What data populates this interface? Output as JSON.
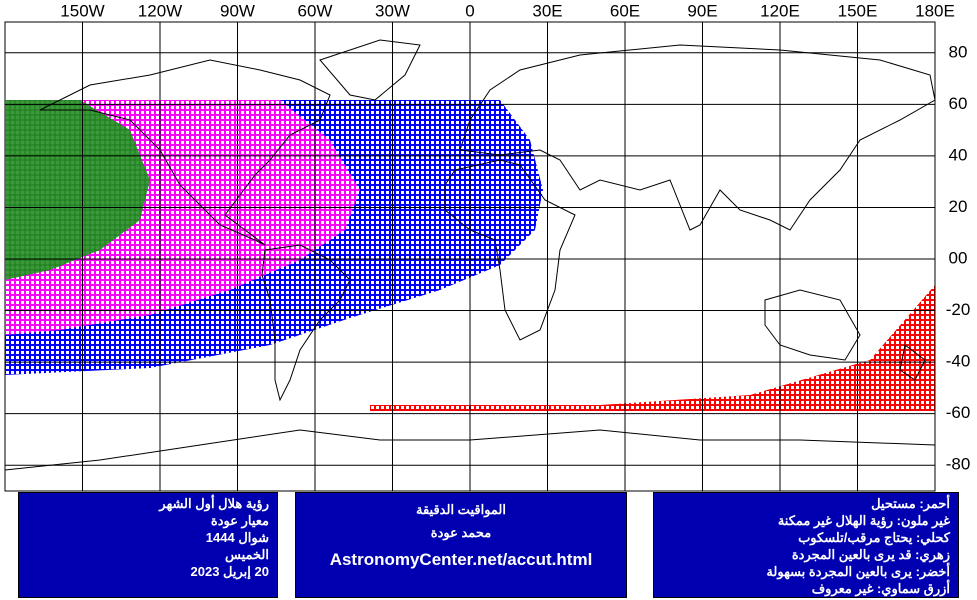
{
  "map": {
    "xticks": [
      {
        "value": -150,
        "label": "150W"
      },
      {
        "value": -120,
        "label": "120W"
      },
      {
        "value": -90,
        "label": "90W"
      },
      {
        "value": -60,
        "label": "60W"
      },
      {
        "value": -30,
        "label": "30W"
      },
      0,
      {
        "value": 30,
        "label": "30E"
      },
      {
        "value": 60,
        "label": "60E"
      },
      {
        "value": 90,
        "label": "90E"
      },
      {
        "value": 120,
        "label": "120E"
      },
      {
        "value": 150,
        "label": "150E"
      },
      {
        "value": 180,
        "label": "180E"
      }
    ],
    "yticks": [
      80,
      60,
      40,
      20,
      {
        "value": 0,
        "label": "00"
      },
      -20,
      -40,
      -60,
      -80
    ]
  },
  "panels": {
    "left": [
      "رؤية هلال أول الشهر",
      "معيار عودة",
      "شوال 1444",
      "الخميس",
      "20 إبريل 2023"
    ],
    "middle": [
      "المواقيت الدقيقة",
      "محمد عودة",
      "AstronomyCenter.net/accut.html"
    ],
    "right": [
      "أحمر: مستحيل",
      "غير ملون: رؤية الهلال غير ممكنة",
      "كحلي: يحتاج مرقب/تلسكوب",
      "زهري: قد يرى بالعين المجردة",
      "أخضر: يرى بالعين المجردة بسهولة",
      "أزرق سماوي: غير معروف"
    ]
  }
}
